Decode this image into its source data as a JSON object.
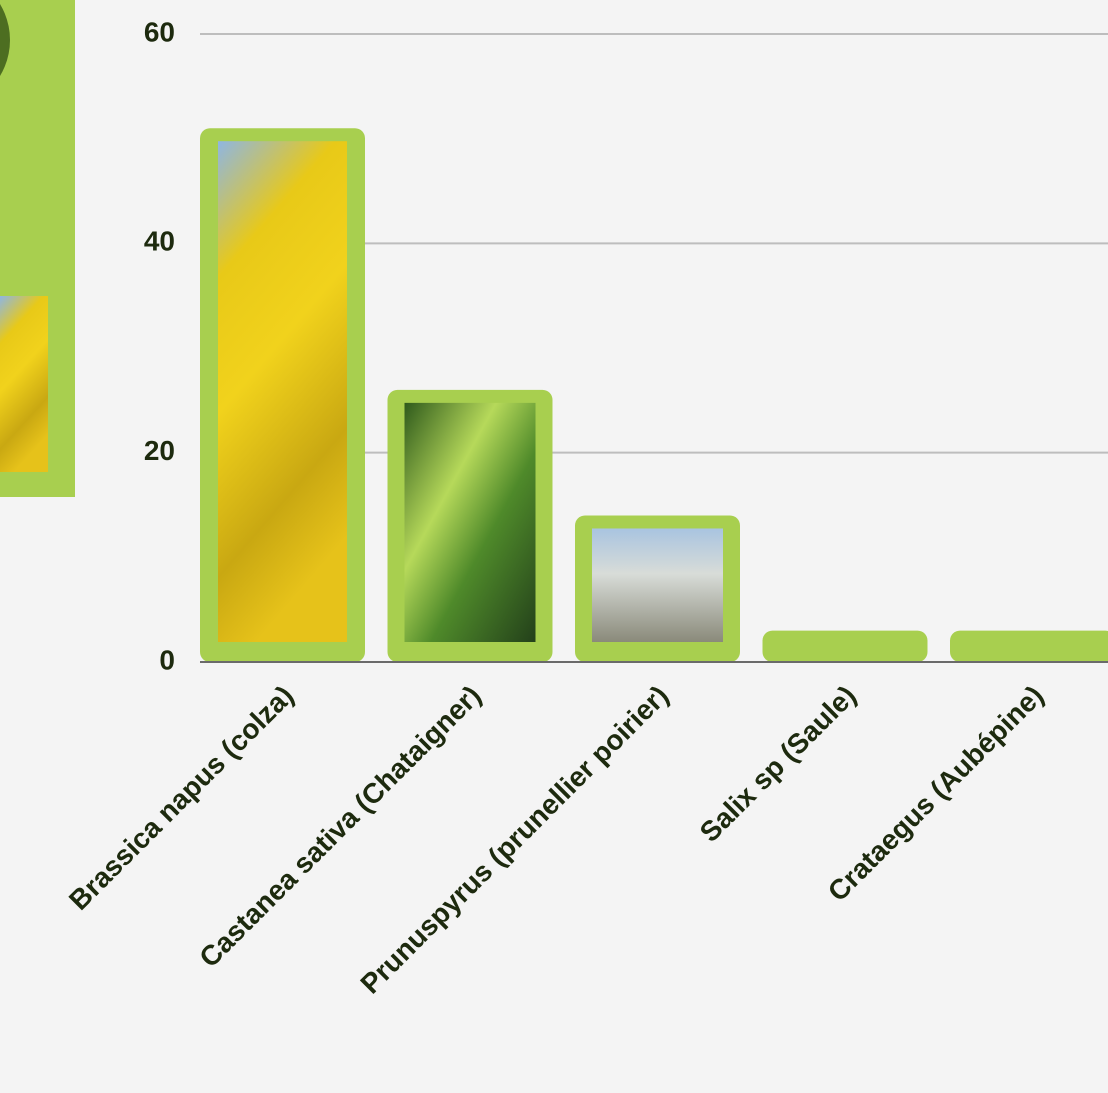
{
  "chart_data": {
    "type": "bar",
    "categories": [
      "Brassica napus (colza)",
      "Castanea sativa (Chataigner)",
      "Prunuspyrus (prunellier poirier)",
      "Salix sp (Saule)",
      "Crataegus (Aubépine)"
    ],
    "values": [
      51,
      26,
      14,
      3,
      3
    ],
    "color": "#a8cf4f",
    "ylim": [
      0,
      60
    ],
    "yticks": [
      0,
      20,
      40,
      60
    ],
    "grid": true
  }
}
